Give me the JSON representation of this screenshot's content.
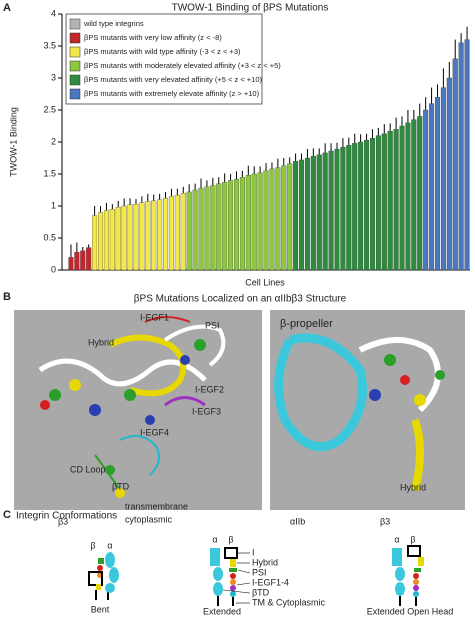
{
  "chart_data": {
    "type": "bar",
    "panel_label": "A",
    "title": "TWOW-1 Binding of βPS Mutations",
    "y_label": "TWOW-1 Binding",
    "x_label": "Cell Lines",
    "ylim": [
      0,
      4
    ],
    "yticks": [
      0,
      0.5,
      1,
      1.5,
      2,
      2.5,
      3,
      3.5,
      4
    ],
    "grid": false,
    "legend": "upper left",
    "series": [
      {
        "name": "wild type integrins",
        "color": "#b4b4b4",
        "values": [],
        "errors": []
      },
      {
        "name": "βPS mutants with very low affinity (z < -8)",
        "color": "#c1272d",
        "values": [
          0.2,
          0.28,
          0.3,
          0.35
        ],
        "errors": [
          0.2,
          0.15,
          0.06,
          0.05
        ]
      },
      {
        "name": "βPS mutants with wild type affinity (-3 < z < +3)",
        "color": "#f3e84a",
        "values": [
          0.85,
          0.9,
          0.93,
          0.95,
          0.98,
          1.0,
          1.02,
          1.03,
          1.05,
          1.07,
          1.08,
          1.1,
          1.12,
          1.15,
          1.17,
          1.2
        ],
        "errors": [
          0.15,
          0.1,
          0.12,
          0.08,
          0.1,
          0.12,
          0.1,
          0.08,
          0.1,
          0.12,
          0.1,
          0.09,
          0.1,
          0.12,
          0.1,
          0.1
        ]
      },
      {
        "name": "βPS mutants with  moderately elevated affinity (+3 < z < +5)",
        "color": "#8dc63f",
        "values": [
          1.22,
          1.25,
          1.28,
          1.3,
          1.32,
          1.35,
          1.37,
          1.4,
          1.42,
          1.45,
          1.48,
          1.5,
          1.52,
          1.55,
          1.58,
          1.6,
          1.63,
          1.66
        ],
        "errors": [
          0.12,
          0.1,
          0.15,
          0.1,
          0.12,
          0.1,
          0.14,
          0.1,
          0.12,
          0.1,
          0.15,
          0.12,
          0.1,
          0.12,
          0.1,
          0.14,
          0.12,
          0.1
        ]
      },
      {
        "name": "βPS mutants with very elevated affinity (+5 < z < +10)",
        "color": "#2e8b3e",
        "values": [
          1.7,
          1.72,
          1.75,
          1.78,
          1.8,
          1.83,
          1.86,
          1.89,
          1.92,
          1.95,
          1.98,
          2.0,
          2.03,
          2.06,
          2.1,
          2.13,
          2.17,
          2.2,
          2.25,
          2.3,
          2.35,
          2.4
        ],
        "errors": [
          0.12,
          0.1,
          0.14,
          0.12,
          0.1,
          0.15,
          0.12,
          0.1,
          0.14,
          0.12,
          0.15,
          0.12,
          0.1,
          0.14,
          0.12,
          0.15,
          0.12,
          0.18,
          0.15,
          0.2,
          0.15,
          0.2
        ]
      },
      {
        "name": "βPS mutants with extremely elevate affinity (z > +10)",
        "color": "#4a78c0",
        "values": [
          2.5,
          2.6,
          2.7,
          2.85,
          3.0,
          3.3,
          3.55,
          3.6
        ],
        "errors": [
          0.2,
          0.25,
          0.2,
          0.3,
          0.25,
          0.3,
          0.15,
          0.2
        ]
      }
    ]
  },
  "panel_b": {
    "panel_label": "B",
    "title": "βPS Mutations Localized on an αIIbβ3 Structure",
    "left_labels": [
      {
        "text": "I-EGF1",
        "color": "#d62020"
      },
      {
        "text": "PSI",
        "color": "#2aa02a"
      },
      {
        "text": "Hybrid",
        "color": "#e8d800"
      },
      {
        "text": "I-EGF2",
        "color": "#f08a1a"
      },
      {
        "text": "I-EGF3",
        "color": "#a030c0"
      },
      {
        "text": "I-EGF4",
        "color": "#20b8d0"
      },
      {
        "text": "CD Loop",
        "color": "#000000"
      },
      {
        "text": "βTD",
        "color": "#2aa02a"
      },
      {
        "text": "transmembrane",
        "color": "#000000"
      },
      {
        "text": "cytoplasmic",
        "color": "#000000"
      },
      {
        "text": "β3",
        "color": "#000000"
      }
    ],
    "right_labels": [
      {
        "text": "β-propeller",
        "color": "#20b8d0"
      },
      {
        "text": "αIIb",
        "color": "#000000"
      },
      {
        "text": "β3",
        "color": "#000000"
      },
      {
        "text": "Hybrid",
        "color": "#e8d800"
      }
    ]
  },
  "panel_c": {
    "panel_label": "C",
    "title": "Integrin Conformations",
    "alpha": "α",
    "beta": "β",
    "domains": [
      "I",
      "Hybrid",
      "PSI",
      "I-EGF1-4",
      "βTD",
      "TM & Cytoplasmic"
    ],
    "conformations": [
      "Bent",
      "Extended",
      "Extended Open Head"
    ]
  }
}
